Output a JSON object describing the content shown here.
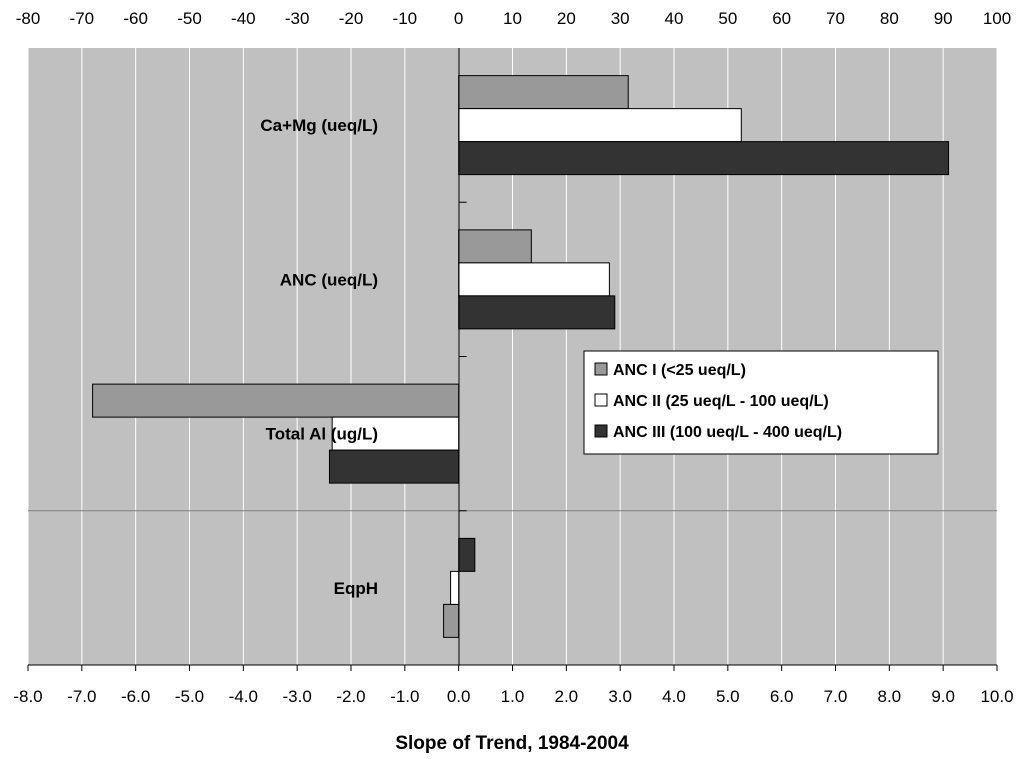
{
  "chart_data": {
    "type": "bar",
    "orientation": "horizontal",
    "title": "",
    "xlabel": "Slope of Trend, 1984-2004",
    "ylabel": "",
    "top_axis_ticks": [
      "-80",
      "-70",
      "-60",
      "-50",
      "-40",
      "-30",
      "-20",
      "-10",
      "0",
      "10",
      "20",
      "30",
      "40",
      "50",
      "60",
      "70",
      "80",
      "90",
      "100"
    ],
    "bottom_axis_ticks": [
      "-8.0",
      "-7.0",
      "-6.0",
      "-5.0",
      "-4.0",
      "-3.0",
      "-2.0",
      "-1.0",
      "0.0",
      "1.0",
      "2.0",
      "3.0",
      "4.0",
      "5.0",
      "6.0",
      "7.0",
      "8.0",
      "9.0",
      "10.0"
    ],
    "top_axis_range": [
      -80,
      100
    ],
    "bottom_axis_range": [
      -8,
      10
    ],
    "grid": true,
    "legend_position": "right-center",
    "categories": [
      "Ca+Mg (ueq/L)",
      "ANC (ueq/L)",
      "Total Al (ug/L)",
      "EqpH"
    ],
    "category_axis": [
      "top",
      "top",
      "top",
      "bottom"
    ],
    "series": [
      {
        "name": "ANC I (<25 ueq/L)",
        "color": "#999999",
        "values": [
          31.5,
          13.5,
          -68,
          -0.28
        ]
      },
      {
        "name": "ANC II  (25 ueq/L - 100 ueq/L)",
        "color": "#ffffff",
        "values": [
          52.5,
          28,
          -23.5,
          -0.15
        ]
      },
      {
        "name": "ANC III (100 ueq/L - 400 ueq/L)",
        "color": "#333333",
        "values": [
          91,
          29,
          -24,
          0.3
        ]
      }
    ]
  }
}
